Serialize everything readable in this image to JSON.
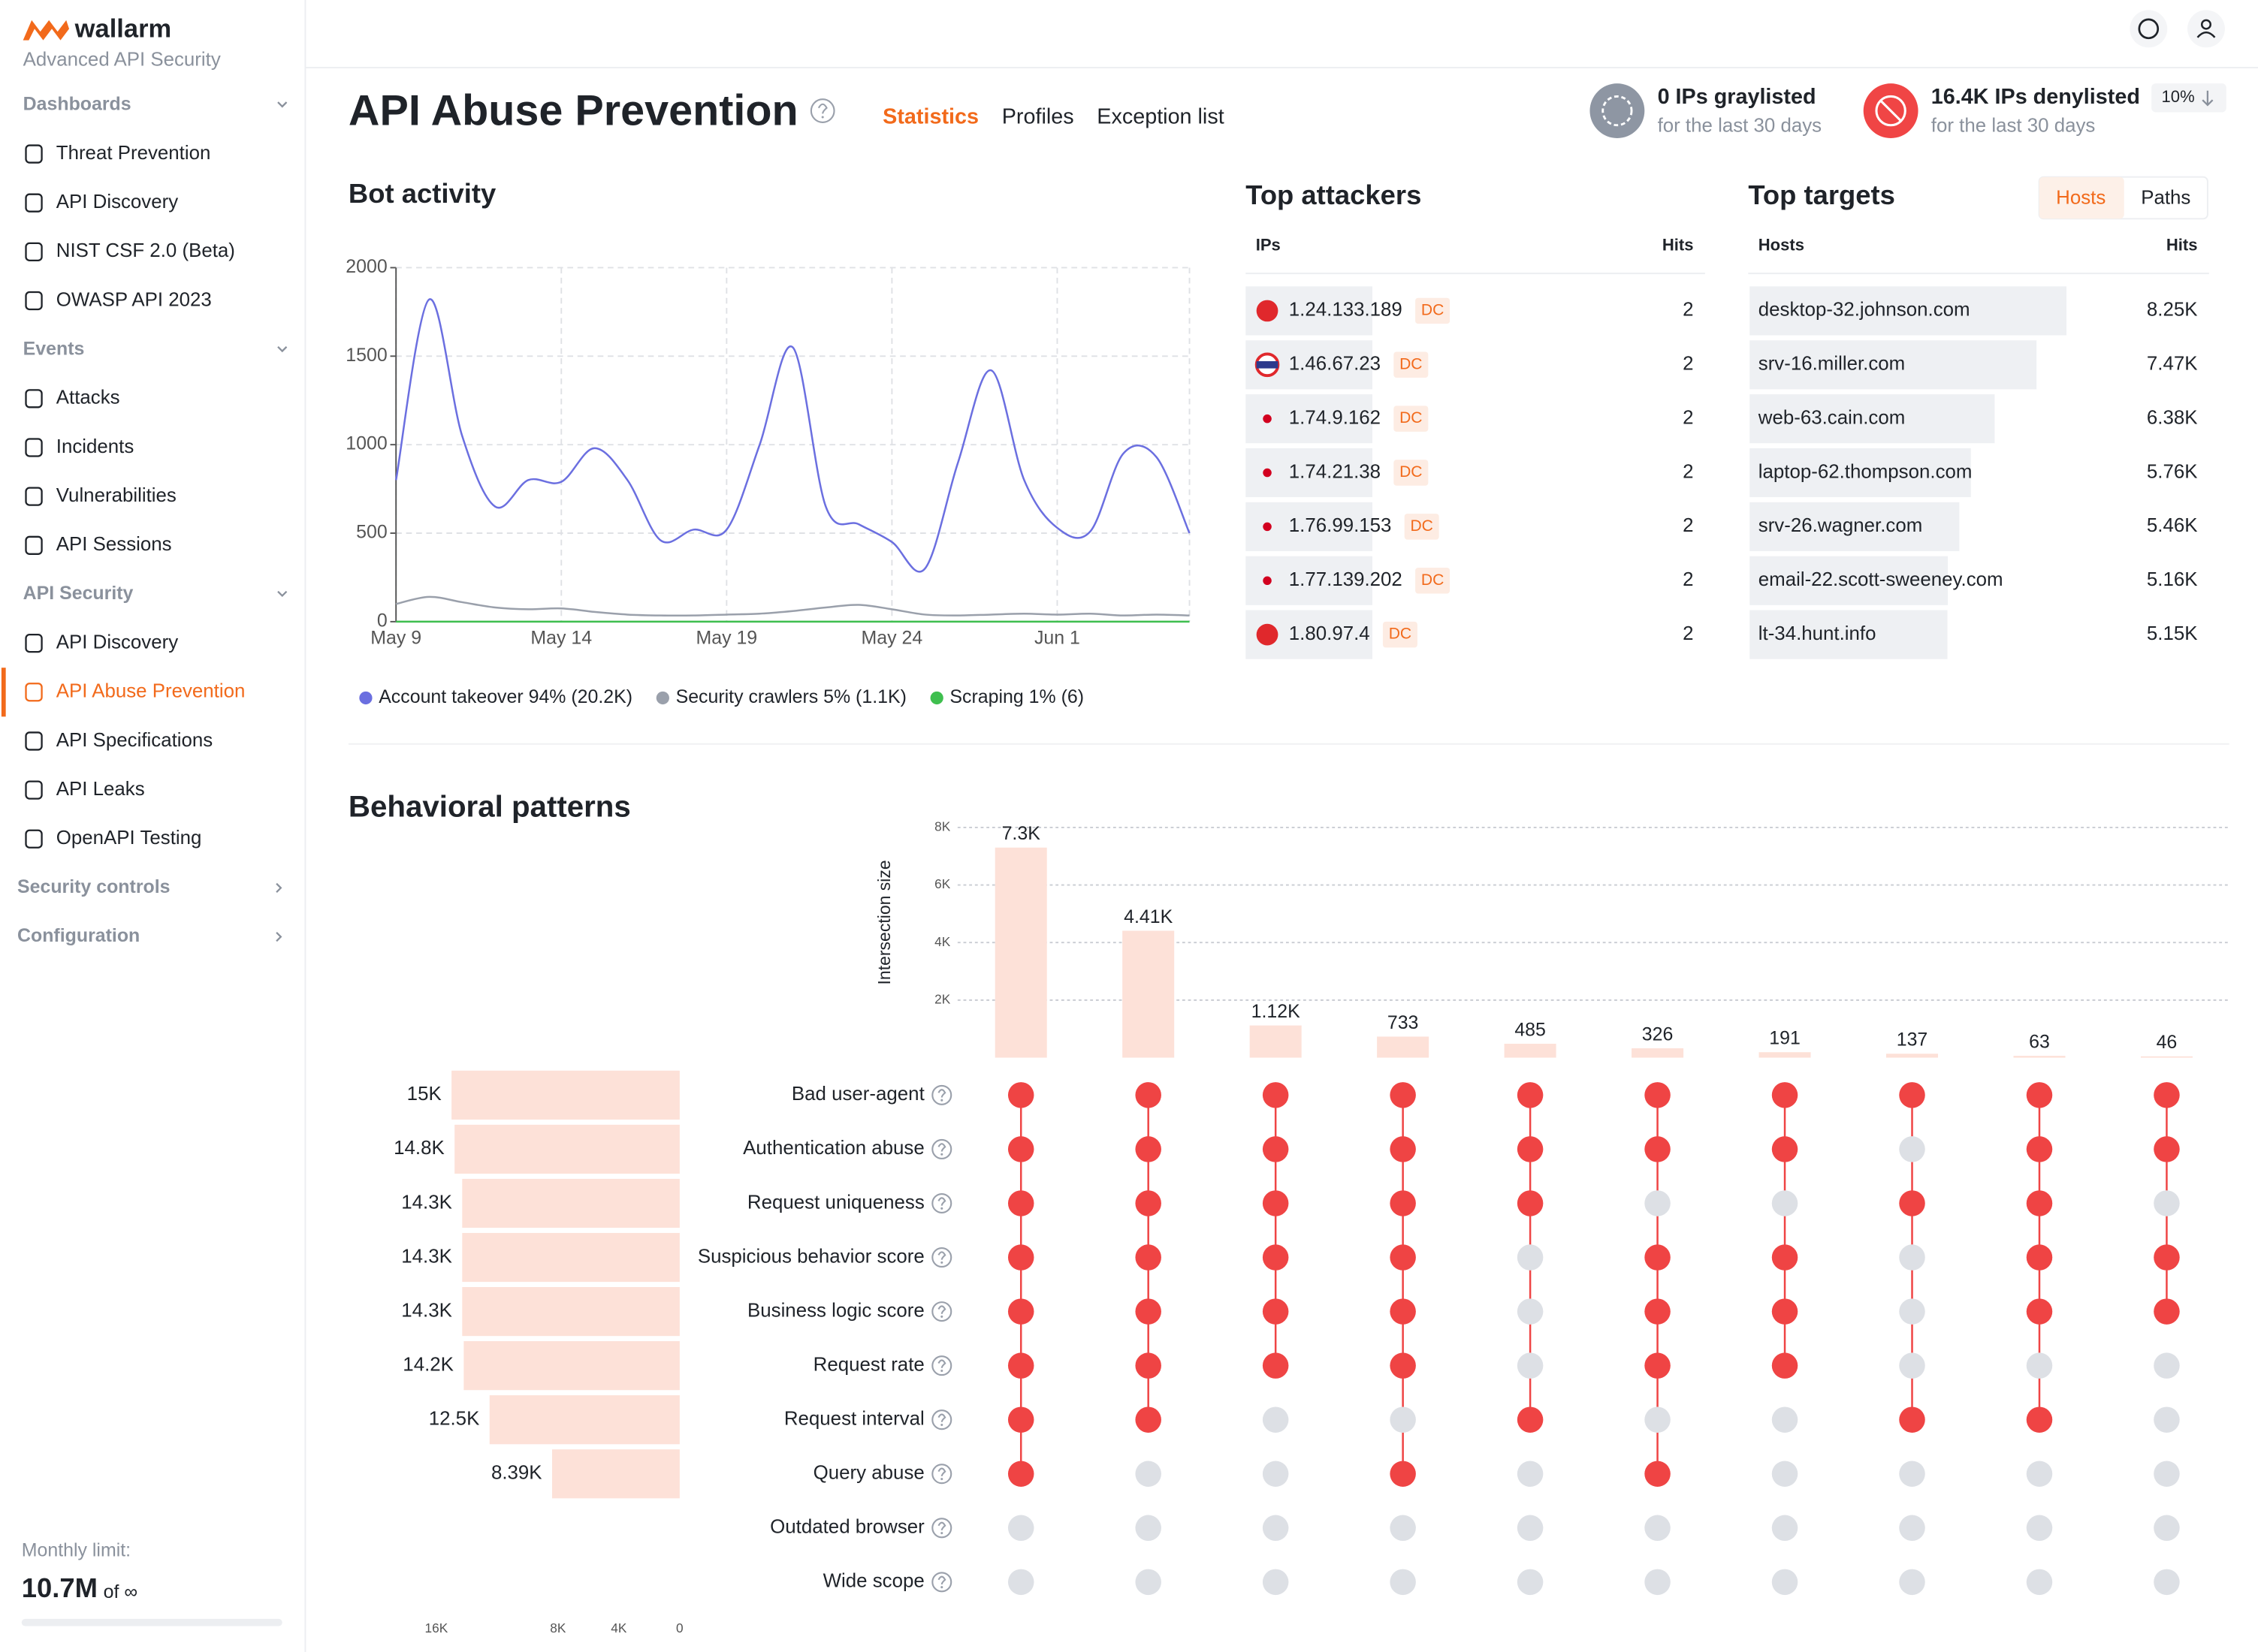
{
  "sidebar": {
    "logo": "wallarm",
    "tagline": "Advanced API Security",
    "groups": [
      {
        "title": "Dashboards",
        "items": [
          "Threat Prevention",
          "API Discovery",
          "NIST CSF 2.0 (Beta)",
          "OWASP API 2023"
        ]
      },
      {
        "title": "Events",
        "items": [
          "Attacks",
          "Incidents",
          "Vulnerabilities",
          "API Sessions"
        ]
      },
      {
        "title": "API Security",
        "items": [
          "API Discovery",
          "API Abuse Prevention",
          "API Specifications",
          "API Leaks",
          "OpenAPI Testing"
        ]
      },
      {
        "title": "Security controls",
        "items": []
      },
      {
        "title": "Configuration",
        "items": []
      }
    ],
    "monthly_limit": {
      "label": "Monthly limit:",
      "value": "10.7M",
      "of": "of ∞"
    }
  },
  "header": {
    "title": "API Abuse Prevention",
    "tabs": [
      "Statistics",
      "Profiles",
      "Exception list"
    ],
    "graylisted": {
      "title": "0 IPs graylisted",
      "subtitle": "for the last 30 days"
    },
    "denylisted": {
      "title": "16.4K IPs denylisted",
      "subtitle": "for the last 30 days",
      "badge": "10%"
    }
  },
  "top_attackers": {
    "title": "Top attackers",
    "columns": [
      "IPs",
      "Hits"
    ],
    "rows": [
      {
        "ip": "1.24.133.189",
        "tag": "DC",
        "hits": 2
      },
      {
        "ip": "1.46.67.23",
        "tag": "DC",
        "hits": 2
      },
      {
        "ip": "1.74.9.162",
        "tag": "DC",
        "hits": 2
      },
      {
        "ip": "1.74.21.38",
        "tag": "DC",
        "hits": 2
      },
      {
        "ip": "1.76.99.153",
        "tag": "DC",
        "hits": 2
      },
      {
        "ip": "1.77.139.202",
        "tag": "DC",
        "hits": 2
      },
      {
        "ip": "1.80.97.4",
        "tag": "DC",
        "hits": 2
      }
    ]
  },
  "top_targets": {
    "title": "Top targets",
    "toggle": [
      "Hosts",
      "Paths"
    ],
    "columns": [
      "Hosts",
      "Hits"
    ],
    "rows": [
      {
        "host": "desktop-32.johnson.com",
        "hits": 8250,
        "hits_label": "8.25K"
      },
      {
        "host": "srv-16.miller.com",
        "hits": 7470,
        "hits_label": "7.47K"
      },
      {
        "host": "web-63.cain.com",
        "hits": 6380,
        "hits_label": "6.38K"
      },
      {
        "host": "laptop-62.thompson.com",
        "hits": 5760,
        "hits_label": "5.76K"
      },
      {
        "host": "srv-26.wagner.com",
        "hits": 5460,
        "hits_label": "5.46K"
      },
      {
        "host": "email-22.scott-sweeney.com",
        "hits": 5160,
        "hits_label": "5.16K"
      },
      {
        "host": "lt-34.hunt.info",
        "hits": 5150,
        "hits_label": "5.15K"
      }
    ]
  },
  "chart_data": [
    {
      "type": "line",
      "title": "Bot activity",
      "categories": [
        "May 9",
        null,
        null,
        null,
        null,
        "May 14",
        null,
        null,
        null,
        null,
        "May 19",
        null,
        null,
        null,
        null,
        "May 24",
        null,
        null,
        null,
        null,
        "Jun 1",
        null,
        null,
        null,
        null
      ],
      "series": [
        {
          "name": "Account takeover 94% (20.2K)",
          "color": "#6b6fe0",
          "values": [
            800,
            1820,
            1050,
            650,
            800,
            790,
            980,
            800,
            460,
            520,
            520,
            1000,
            1550,
            650,
            550,
            450,
            300,
            900,
            1420,
            800,
            530,
            510,
            950,
            930,
            500
          ]
        },
        {
          "name": "Security crawlers 5% (1.1K)",
          "color": "#9aa0ab",
          "values": [
            100,
            140,
            110,
            80,
            70,
            75,
            55,
            40,
            35,
            35,
            40,
            45,
            60,
            80,
            95,
            70,
            40,
            35,
            40,
            45,
            40,
            45,
            35,
            40,
            35
          ]
        },
        {
          "name": "Scraping 1% (6)",
          "color": "#3fbf4f",
          "values": [
            0,
            0,
            0,
            0,
            0,
            0,
            0,
            0,
            0,
            0,
            0,
            0,
            0,
            0,
            0,
            0,
            0,
            0,
            0,
            0,
            0,
            0,
            0,
            0,
            0
          ]
        }
      ],
      "ylim": [
        0,
        2000
      ],
      "yticks": [
        0,
        500,
        1000,
        1500,
        2000
      ],
      "grid": true,
      "legend": "bottom"
    },
    {
      "type": "upset",
      "title": "Behavioral patterns",
      "ylabel": "Intersection size",
      "sets": [
        "Bad user-agent",
        "Authentication abuse",
        "Request uniqueness",
        "Suspicious behavior score",
        "Business logic score",
        "Request rate",
        "Request interval",
        "Query abuse",
        "Outdated browser",
        "Wide scope"
      ],
      "set_sizes": [
        15000,
        14800,
        14300,
        14300,
        14300,
        14200,
        12500,
        8390,
        null,
        null
      ],
      "set_size_labels": [
        "15K",
        "14.8K",
        "14.3K",
        "14.3K",
        "14.3K",
        "14.2K",
        "12.5K",
        "8.39K",
        null,
        null
      ],
      "set_xlim": [
        0,
        16000
      ],
      "set_xticks": [
        {
          "value": 16000,
          "label": "16K"
        },
        {
          "value": 8000,
          "label": "8K"
        },
        {
          "value": 4000,
          "label": "4K"
        },
        0
      ],
      "intersections": [
        7300,
        4410,
        1120,
        733,
        485,
        326,
        191,
        137,
        63,
        46
      ],
      "intersection_labels": [
        "7.3K",
        "4.41K",
        "1.12K",
        "733",
        "485",
        "326",
        "191",
        "137",
        "63",
        "46"
      ],
      "membership": [
        [
          1,
          1,
          1,
          1,
          1,
          1,
          1,
          1,
          0,
          0
        ],
        [
          1,
          1,
          1,
          1,
          1,
          1,
          1,
          0,
          0,
          0
        ],
        [
          1,
          1,
          1,
          1,
          1,
          1,
          0,
          0,
          0,
          0
        ],
        [
          1,
          1,
          1,
          1,
          1,
          1,
          0,
          1,
          0,
          0
        ],
        [
          1,
          1,
          1,
          0,
          0,
          0,
          1,
          0,
          0,
          0
        ],
        [
          1,
          1,
          0,
          1,
          1,
          1,
          0,
          1,
          0,
          0
        ],
        [
          1,
          1,
          0,
          1,
          1,
          1,
          0,
          0,
          0,
          0
        ],
        [
          1,
          0,
          1,
          0,
          0,
          0,
          1,
          0,
          0,
          0
        ],
        [
          1,
          1,
          1,
          1,
          1,
          0,
          1,
          0,
          0,
          0
        ],
        [
          1,
          1,
          0,
          1,
          1,
          0,
          0,
          0,
          0,
          0
        ]
      ],
      "ylim": [
        0,
        8000
      ],
      "yticks": [
        {
          "value": 2000,
          "label": "2K"
        },
        {
          "value": 4000,
          "label": "4K"
        },
        {
          "value": 6000,
          "label": "6K"
        },
        {
          "value": 8000,
          "label": "8K"
        }
      ],
      "bar_color": "#fde1d8",
      "dot_color": "#ef4444",
      "empty_dot_color": "#dde0e5",
      "grid": true
    }
  ]
}
